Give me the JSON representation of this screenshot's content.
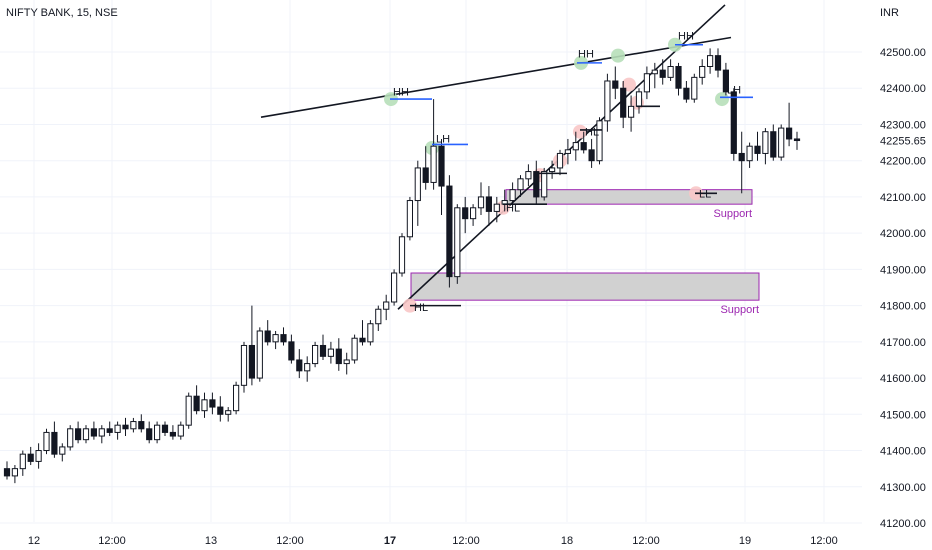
{
  "chart_data": {
    "type": "candlestick",
    "title": "NIFTY BANK, 15, NSE",
    "currency": "INR",
    "last_price": "42255.65",
    "y_ticks": [
      42500,
      42400,
      42300,
      42200,
      42100,
      42000,
      41900,
      41800,
      41700,
      41600,
      41500,
      41400,
      41300,
      41200
    ],
    "y_tick_labels": [
      "42500.00",
      "42400.00",
      "42300.00",
      "42200.00",
      "42100.00",
      "42000.00",
      "41900.00",
      "41800.00",
      "41700.00",
      "41600.00",
      "41500.00",
      "41400.00",
      "41300.00",
      "41200.00"
    ],
    "ylim": [
      41180,
      42600
    ],
    "x_ticks": [
      {
        "label": "12",
        "bold": false
      },
      {
        "label": "12:00",
        "bold": false
      },
      {
        "label": "13",
        "bold": false
      },
      {
        "label": "12:00",
        "bold": false
      },
      {
        "label": "17",
        "bold": true
      },
      {
        "label": "12:00",
        "bold": false
      },
      {
        "label": "18",
        "bold": false
      },
      {
        "label": "12:00",
        "bold": false
      },
      {
        "label": "19",
        "bold": false
      },
      {
        "label": "12:00",
        "bold": false
      }
    ],
    "candles": [
      [
        41350,
        41370,
        41320,
        41330
      ],
      [
        41330,
        41360,
        41310,
        41350
      ],
      [
        41350,
        41400,
        41330,
        41390
      ],
      [
        41390,
        41410,
        41360,
        41370
      ],
      [
        41370,
        41420,
        41350,
        41400
      ],
      [
        41400,
        41460,
        41390,
        41450
      ],
      [
        41450,
        41480,
        41380,
        41390
      ],
      [
        41390,
        41420,
        41370,
        41410
      ],
      [
        41410,
        41470,
        41400,
        41460
      ],
      [
        41460,
        41480,
        41420,
        41430
      ],
      [
        41430,
        41470,
        41420,
        41460
      ],
      [
        41460,
        41480,
        41430,
        41440
      ],
      [
        41440,
        41470,
        41420,
        41460
      ],
      [
        41460,
        41480,
        41440,
        41450
      ],
      [
        41450,
        41480,
        41430,
        41470
      ],
      [
        41470,
        41490,
        41440,
        41460
      ],
      [
        41460,
        41490,
        41450,
        41480
      ],
      [
        41480,
        41500,
        41450,
        41460
      ],
      [
        41460,
        41480,
        41420,
        41430
      ],
      [
        41430,
        41480,
        41420,
        41470
      ],
      [
        41470,
        41480,
        41440,
        41450
      ],
      [
        41450,
        41470,
        41430,
        41440
      ],
      [
        41440,
        41480,
        41430,
        41470
      ],
      [
        41470,
        41560,
        41460,
        41550
      ],
      [
        41550,
        41580,
        41500,
        41510
      ],
      [
        41510,
        41560,
        41490,
        41540
      ],
      [
        41540,
        41560,
        41500,
        41520
      ],
      [
        41520,
        41550,
        41480,
        41500
      ],
      [
        41500,
        41520,
        41480,
        41510
      ],
      [
        41510,
        41590,
        41500,
        41580
      ],
      [
        41580,
        41700,
        41560,
        41690
      ],
      [
        41690,
        41800,
        41580,
        41600
      ],
      [
        41600,
        41740,
        41590,
        41730
      ],
      [
        41730,
        41760,
        41690,
        41700
      ],
      [
        41700,
        41730,
        41680,
        41720
      ],
      [
        41720,
        41740,
        41690,
        41700
      ],
      [
        41700,
        41720,
        41640,
        41650
      ],
      [
        41650,
        41680,
        41600,
        41620
      ],
      [
        41620,
        41660,
        41590,
        41640
      ],
      [
        41640,
        41700,
        41630,
        41690
      ],
      [
        41690,
        41720,
        41650,
        41660
      ],
      [
        41660,
        41700,
        41640,
        41680
      ],
      [
        41680,
        41710,
        41620,
        41640
      ],
      [
        41640,
        41670,
        41610,
        41650
      ],
      [
        41650,
        41720,
        41640,
        41710
      ],
      [
        41710,
        41760,
        41690,
        41700
      ],
      [
        41700,
        41760,
        41690,
        41750
      ],
      [
        41750,
        41800,
        41730,
        41790
      ],
      [
        41790,
        41830,
        41760,
        41810
      ],
      [
        41810,
        41900,
        41800,
        41890
      ],
      [
        41890,
        42000,
        41880,
        41990
      ],
      [
        41990,
        42100,
        41980,
        42090
      ],
      [
        42090,
        42200,
        42020,
        42180
      ],
      [
        42180,
        42240,
        42120,
        42140
      ],
      [
        42140,
        42370,
        42120,
        42240
      ],
      [
        42240,
        42260,
        42050,
        42130
      ],
      [
        42130,
        42160,
        41850,
        41880
      ],
      [
        41880,
        42080,
        41860,
        42070
      ],
      [
        42070,
        42100,
        42000,
        42040
      ],
      [
        42040,
        42080,
        42020,
        42070
      ],
      [
        42070,
        42140,
        42050,
        42100
      ],
      [
        42100,
        42130,
        42020,
        42060
      ],
      [
        42060,
        42100,
        42030,
        42080
      ],
      [
        42080,
        42120,
        42060,
        42090
      ],
      [
        42090,
        42140,
        42070,
        42120
      ],
      [
        42120,
        42160,
        42100,
        42150
      ],
      [
        42150,
        42190,
        42130,
        42170
      ],
      [
        42170,
        42200,
        42080,
        42100
      ],
      [
        42100,
        42180,
        42090,
        42170
      ],
      [
        42170,
        42200,
        42150,
        42180
      ],
      [
        42180,
        42230,
        42160,
        42220
      ],
      [
        42220,
        42260,
        42190,
        42230
      ],
      [
        42230,
        42280,
        42200,
        42250
      ],
      [
        42250,
        42280,
        42220,
        42230
      ],
      [
        42230,
        42260,
        42180,
        42200
      ],
      [
        42200,
        42320,
        42190,
        42310
      ],
      [
        42310,
        42440,
        42280,
        42420
      ],
      [
        42420,
        42460,
        42370,
        42400
      ],
      [
        42400,
        42420,
        42290,
        42320
      ],
      [
        42320,
        42380,
        42280,
        42350
      ],
      [
        42350,
        42400,
        42330,
        42390
      ],
      [
        42390,
        42460,
        42370,
        42440
      ],
      [
        42440,
        42470,
        42400,
        42450
      ],
      [
        42450,
        42480,
        42410,
        42430
      ],
      [
        42430,
        42480,
        42420,
        42460
      ],
      [
        42460,
        42470,
        42380,
        42400
      ],
      [
        42400,
        42420,
        42360,
        42370
      ],
      [
        42370,
        42440,
        42360,
        42430
      ],
      [
        42430,
        42480,
        42410,
        42460
      ],
      [
        42460,
        42510,
        42440,
        42490
      ],
      [
        42490,
        42510,
        42430,
        42450
      ],
      [
        42450,
        42470,
        42380,
        42390
      ],
      [
        42390,
        42400,
        42200,
        42220
      ],
      [
        42220,
        42280,
        42110,
        42200
      ],
      [
        42200,
        42250,
        42180,
        42240
      ],
      [
        42240,
        42280,
        42200,
        42220
      ],
      [
        42220,
        42290,
        42190,
        42280
      ],
      [
        42280,
        42300,
        42200,
        42210
      ],
      [
        42210,
        42300,
        42200,
        42290
      ],
      [
        42290,
        42360,
        42240,
        42260
      ],
      [
        42260,
        42280,
        42230,
        42255.65
      ]
    ],
    "candle_x_start": 7,
    "candle_x_step": 7.9,
    "trendlines": [
      {
        "from": [
          261,
          42320
        ],
        "to": [
          731,
          42540
        ]
      },
      {
        "from": [
          398,
          41790
        ],
        "to": [
          725,
          42630
        ]
      }
    ],
    "zones": [
      {
        "x1": 506,
        "x2": 752,
        "top": 42120,
        "bottom": 42080,
        "label": "Support"
      },
      {
        "x1": 411,
        "x2": 759,
        "top": 41890,
        "bottom": 41815,
        "label": "Support"
      }
    ],
    "level_lines": [
      {
        "x1": 390,
        "x2": 432,
        "y": 42370,
        "color": "#2962ff"
      },
      {
        "x1": 432,
        "x2": 468,
        "y": 42245,
        "color": "#2962ff"
      },
      {
        "x1": 577,
        "x2": 602,
        "y": 42470,
        "color": "#2962ff"
      },
      {
        "x1": 675,
        "x2": 703,
        "y": 42520,
        "color": "#2962ff"
      },
      {
        "x1": 720,
        "x2": 753,
        "y": 42375,
        "color": "#2962ff"
      },
      {
        "x1": 410,
        "x2": 461,
        "y": 41800,
        "color": "#131722"
      },
      {
        "x1": 503,
        "x2": 547,
        "y": 42080,
        "color": "#131722"
      },
      {
        "x1": 536,
        "x2": 567,
        "y": 42165,
        "color": "#131722"
      },
      {
        "x1": 580,
        "x2": 602,
        "y": 42285,
        "color": "#131722"
      },
      {
        "x1": 637,
        "x2": 660,
        "y": 42350,
        "color": "#131722"
      },
      {
        "x1": 695,
        "x2": 717,
        "y": 42110,
        "color": "#131722"
      }
    ],
    "markers": [
      {
        "x": 391,
        "y": 42370,
        "color": "#b7dfb9"
      },
      {
        "x": 432,
        "y": 42235,
        "color": "#b7dfb9"
      },
      {
        "x": 581,
        "y": 42470,
        "color": "#b7dfb9"
      },
      {
        "x": 618,
        "y": 42490,
        "color": "#b7dfb9"
      },
      {
        "x": 675,
        "y": 42520,
        "color": "#b7dfb9"
      },
      {
        "x": 722,
        "y": 42370,
        "color": "#b7dfb9"
      },
      {
        "x": 410,
        "y": 41800,
        "color": "#f8c6c6"
      },
      {
        "x": 503,
        "y": 42070,
        "color": "#f8c6c6"
      },
      {
        "x": 540,
        "y": 42160,
        "color": "#f8c6c6"
      },
      {
        "x": 560,
        "y": 42200,
        "color": "#f8c6c6"
      },
      {
        "x": 580,
        "y": 42280,
        "color": "#f8c6c6"
      },
      {
        "x": 629,
        "y": 42410,
        "color": "#f8c6c6"
      },
      {
        "x": 637,
        "y": 42360,
        "color": "#f8c6c6"
      },
      {
        "x": 696,
        "y": 42110,
        "color": "#f8c6c6"
      }
    ],
    "labels": [
      {
        "text": "HH",
        "x": 393,
        "y": 42380
      },
      {
        "text": "LH",
        "x": 436,
        "y": 42250
      },
      {
        "text": "HH",
        "x": 578,
        "y": 42485
      },
      {
        "text": "HH",
        "x": 678,
        "y": 42535
      },
      {
        "text": "LH",
        "x": 727,
        "y": 42385
      },
      {
        "text": "HL",
        "x": 414,
        "y": 41785
      },
      {
        "text": "HL",
        "x": 506,
        "y": 42060
      },
      {
        "text": "HL",
        "x": 585,
        "y": 42270
      },
      {
        "text": "LL",
        "x": 699,
        "y": 42098
      }
    ],
    "x_tick_positions": [
      34,
      112,
      211,
      290,
      390,
      466,
      567,
      646,
      745,
      824
    ]
  }
}
